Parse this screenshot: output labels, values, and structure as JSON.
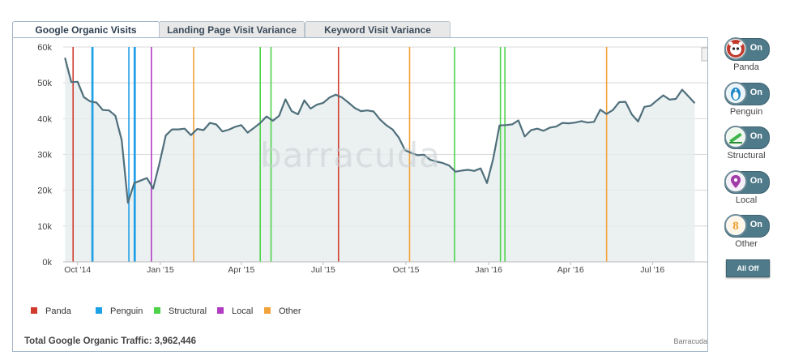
{
  "tabs": [
    {
      "label": "Google Organic Visits",
      "active": true
    },
    {
      "label": "Landing Page Visit Variance",
      "active": false
    },
    {
      "label": "Keyword Visit Variance",
      "active": false
    }
  ],
  "watermark": "barracuda",
  "total_text": "Total Google Organic Traffic: 3,962,446",
  "credit": "Barracuda",
  "side_toggles": [
    {
      "label": "Panda",
      "state": "On",
      "icon": "panda-icon",
      "color": "#c0392b"
    },
    {
      "label": "Penguin",
      "state": "On",
      "icon": "penguin-icon",
      "color": "#1e88c8"
    },
    {
      "label": "Structural",
      "state": "On",
      "icon": "structural-icon",
      "color": "#3cb54a"
    },
    {
      "label": "Local",
      "state": "On",
      "icon": "local-icon",
      "color": "#a23ba8"
    },
    {
      "label": "Other",
      "state": "On",
      "icon": "other-icon",
      "color": "#f0a030"
    }
  ],
  "all_off_label": "All Off",
  "chart_data": {
    "type": "line",
    "title": "",
    "ylim": [
      0,
      60000
    ],
    "yticks": [
      "0k",
      "10k",
      "20k",
      "30k",
      "40k",
      "50k",
      "60k"
    ],
    "xlim": [
      "2014-09-15",
      "2016-08-31"
    ],
    "xticks": [
      {
        "label": "Oct '14",
        "date": "2014-10-01"
      },
      {
        "label": "Jan '15",
        "date": "2015-01-01"
      },
      {
        "label": "Apr '15",
        "date": "2015-04-01"
      },
      {
        "label": "Jul '15",
        "date": "2015-07-01"
      },
      {
        "label": "Oct '15",
        "date": "2015-10-01"
      },
      {
        "label": "Jan '16",
        "date": "2016-01-01"
      },
      {
        "label": "Apr '16",
        "date": "2016-04-01"
      },
      {
        "label": "Jul '16",
        "date": "2016-07-01"
      }
    ],
    "grid": true,
    "series": [
      {
        "color": "#4f6f7b",
        "points": [
          [
            "2014-09-17",
            57000
          ],
          [
            "2014-09-24",
            50200
          ],
          [
            "2014-10-01",
            50300
          ],
          [
            "2014-10-08",
            46000
          ],
          [
            "2014-10-15",
            44800
          ],
          [
            "2014-10-22",
            44500
          ],
          [
            "2014-10-29",
            42400
          ],
          [
            "2014-11-05",
            42300
          ],
          [
            "2014-11-12",
            40800
          ],
          [
            "2014-11-19",
            34000
          ],
          [
            "2014-11-26",
            16500
          ],
          [
            "2014-12-03",
            22000
          ],
          [
            "2014-12-10",
            22700
          ],
          [
            "2014-12-17",
            23400
          ],
          [
            "2014-12-24",
            20500
          ],
          [
            "2014-12-31",
            27500
          ],
          [
            "2015-01-07",
            35300
          ],
          [
            "2015-01-14",
            37000
          ],
          [
            "2015-01-21",
            37000
          ],
          [
            "2015-01-28",
            37200
          ],
          [
            "2015-02-04",
            35400
          ],
          [
            "2015-02-11",
            37100
          ],
          [
            "2015-02-18",
            36800
          ],
          [
            "2015-02-25",
            38800
          ],
          [
            "2015-03-04",
            38400
          ],
          [
            "2015-03-11",
            36400
          ],
          [
            "2015-03-18",
            36900
          ],
          [
            "2015-03-25",
            37700
          ],
          [
            "2015-04-01",
            38200
          ],
          [
            "2015-04-08",
            36100
          ],
          [
            "2015-04-15",
            37400
          ],
          [
            "2015-04-22",
            38800
          ],
          [
            "2015-04-29",
            40600
          ],
          [
            "2015-05-06",
            39400
          ],
          [
            "2015-05-13",
            40800
          ],
          [
            "2015-05-20",
            45400
          ],
          [
            "2015-05-27",
            42100
          ],
          [
            "2015-06-03",
            41200
          ],
          [
            "2015-06-10",
            45100
          ],
          [
            "2015-06-17",
            42800
          ],
          [
            "2015-06-24",
            43900
          ],
          [
            "2015-07-01",
            44400
          ],
          [
            "2015-07-08",
            45900
          ],
          [
            "2015-07-15",
            46700
          ],
          [
            "2015-07-22",
            45900
          ],
          [
            "2015-07-29",
            44500
          ],
          [
            "2015-08-05",
            43000
          ],
          [
            "2015-08-12",
            42100
          ],
          [
            "2015-08-19",
            42300
          ],
          [
            "2015-08-26",
            42000
          ],
          [
            "2015-09-02",
            39800
          ],
          [
            "2015-09-09",
            38200
          ],
          [
            "2015-09-16",
            37000
          ],
          [
            "2015-09-23",
            34700
          ],
          [
            "2015-09-30",
            31200
          ],
          [
            "2015-10-07",
            30400
          ],
          [
            "2015-10-14",
            29800
          ],
          [
            "2015-10-21",
            29900
          ],
          [
            "2015-10-28",
            28500
          ],
          [
            "2015-11-04",
            28000
          ],
          [
            "2015-11-11",
            27600
          ],
          [
            "2015-11-18",
            26900
          ],
          [
            "2015-11-25",
            25200
          ],
          [
            "2015-12-02",
            25500
          ],
          [
            "2015-12-09",
            25700
          ],
          [
            "2015-12-16",
            25400
          ],
          [
            "2015-12-23",
            26100
          ],
          [
            "2015-12-30",
            22000
          ],
          [
            "2016-01-06",
            28800
          ],
          [
            "2016-01-13",
            38100
          ],
          [
            "2016-01-20",
            38200
          ],
          [
            "2016-01-27",
            38400
          ],
          [
            "2016-02-03",
            39500
          ],
          [
            "2016-02-10",
            35000
          ],
          [
            "2016-02-17",
            36800
          ],
          [
            "2016-02-24",
            37200
          ],
          [
            "2016-03-02",
            36600
          ],
          [
            "2016-03-09",
            37500
          ],
          [
            "2016-03-16",
            37800
          ],
          [
            "2016-03-23",
            38800
          ],
          [
            "2016-03-30",
            38700
          ],
          [
            "2016-04-06",
            38900
          ],
          [
            "2016-04-13",
            39300
          ],
          [
            "2016-04-20",
            38900
          ],
          [
            "2016-04-27",
            39100
          ],
          [
            "2016-05-04",
            42500
          ],
          [
            "2016-05-11",
            41300
          ],
          [
            "2016-05-18",
            42400
          ],
          [
            "2016-05-25",
            44600
          ],
          [
            "2016-06-01",
            44700
          ],
          [
            "2016-06-08",
            41200
          ],
          [
            "2016-06-15",
            39200
          ],
          [
            "2016-06-22",
            43300
          ],
          [
            "2016-06-29",
            43600
          ],
          [
            "2016-07-06",
            45100
          ],
          [
            "2016-07-13",
            46500
          ],
          [
            "2016-07-20",
            45300
          ],
          [
            "2016-07-27",
            45500
          ],
          [
            "2016-08-03",
            48100
          ],
          [
            "2016-08-10",
            46200
          ],
          [
            "2016-08-17",
            44300
          ]
        ]
      }
    ],
    "events": [
      {
        "type": "Panda",
        "date": "2014-09-26"
      },
      {
        "type": "Penguin",
        "date": "2014-10-17"
      },
      {
        "type": "Penguin",
        "date": "2014-10-18"
      },
      {
        "type": "Penguin",
        "date": "2014-11-27"
      },
      {
        "type": "Penguin",
        "date": "2014-12-03"
      },
      {
        "type": "Penguin",
        "date": "2014-12-04"
      },
      {
        "type": "Local",
        "date": "2014-12-22"
      },
      {
        "type": "Other",
        "date": "2015-02-07"
      },
      {
        "type": "Structural",
        "date": "2015-04-22"
      },
      {
        "type": "Structural",
        "date": "2015-05-04"
      },
      {
        "type": "Panda",
        "date": "2015-07-18"
      },
      {
        "type": "Other",
        "date": "2015-10-05"
      },
      {
        "type": "Structural",
        "date": "2015-11-24"
      },
      {
        "type": "Structural",
        "date": "2016-01-14"
      },
      {
        "type": "Structural",
        "date": "2016-01-19"
      },
      {
        "type": "Other",
        "date": "2016-05-11"
      }
    ],
    "legend": [
      {
        "label": "Panda",
        "color": "#d13b2e"
      },
      {
        "label": "Penguin",
        "color": "#1ea0e6"
      },
      {
        "label": "Structural",
        "color": "#4cd34a"
      },
      {
        "label": "Local",
        "color": "#b23bc4"
      },
      {
        "label": "Other",
        "color": "#f2a23a"
      }
    ],
    "legend_position": "bottom-left"
  }
}
